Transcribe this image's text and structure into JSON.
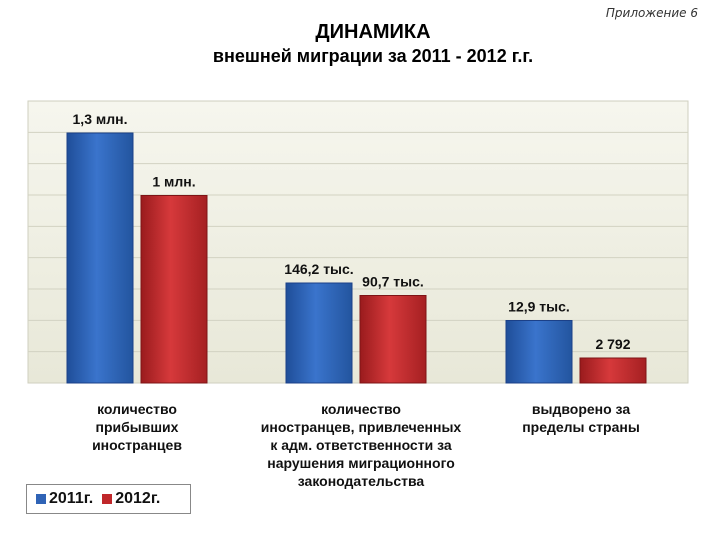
{
  "appendix": "Приложение 6",
  "title_line1": "ДИНАМИКА",
  "title_line2": "внешней миграции за 2011 - 2012 г.г.",
  "chart_data": {
    "type": "bar",
    "categories": [
      "количество прибывших иностранцев",
      "количество иностранцев, привлеченных к адм. ответственности за нарушения миграционного законодательства",
      "выдворено за пределы страны"
    ],
    "category_label_lines": [
      [
        "количество",
        "прибывших",
        "иностранцев"
      ],
      [
        "количество",
        "иностранцев, привлеченных",
        "к адм. ответственности за",
        "нарушения миграционного",
        "законодательства"
      ],
      [
        "выдворено за",
        "пределы страны"
      ]
    ],
    "series": [
      {
        "name": "2011г.",
        "color": "#2f63b6",
        "relative_height": [
          1.0,
          0.4,
          0.25
        ],
        "data_labels": [
          "1,3 млн.",
          "146,2 тыс.",
          "12,9 тыс."
        ]
      },
      {
        "name": "2012г.",
        "color": "#c0272a",
        "relative_height": [
          0.75,
          0.35,
          0.1
        ],
        "data_labels": [
          "1 млн.",
          "90,7 тыс.",
          "2 792"
        ]
      }
    ],
    "value_axis": "not to scale (no tick labels)",
    "grid": true,
    "legend_position": "bottom-left"
  }
}
